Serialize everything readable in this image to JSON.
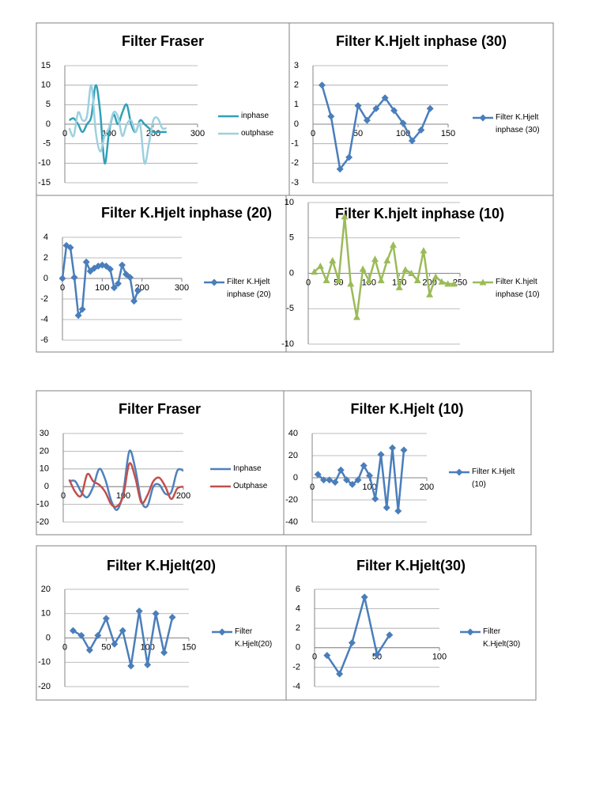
{
  "chart_data": [
    {
      "type": "line",
      "title": "Filter Fraser",
      "smooth": true,
      "marker": "none",
      "grid": true,
      "x": [
        10,
        20,
        30,
        40,
        50,
        60,
        70,
        80,
        90,
        100,
        110,
        120,
        130,
        140,
        150,
        160,
        170,
        180,
        190,
        200,
        210,
        220,
        230
      ],
      "series": [
        {
          "name": "inphase",
          "color": "#31a0b8",
          "values": [
            1,
            1.5,
            0,
            -2,
            0,
            2,
            10,
            3,
            -10,
            -2,
            2.5,
            0,
            3,
            5,
            0,
            -2,
            1,
            0,
            -1,
            -2,
            -2,
            -2,
            -2
          ]
        },
        {
          "name": "outphase",
          "color": "#9dd0df",
          "values": [
            -1,
            -3,
            3,
            1,
            2,
            10,
            -2,
            -7,
            -3,
            -1,
            3,
            2,
            -3,
            0,
            1,
            -2,
            0,
            -10,
            -5,
            1,
            1.5,
            -1,
            -1
          ]
        }
      ],
      "xlim": [
        0,
        300
      ],
      "xticks": [
        0,
        100,
        200,
        300
      ],
      "ylim": [
        -15,
        15
      ],
      "yticks": [
        -15,
        -10,
        -5,
        0,
        5,
        10,
        15
      ]
    },
    {
      "type": "line",
      "title": "Filter K.Hjelt inphase (30)",
      "smooth": false,
      "marker": "diamond",
      "grid": true,
      "x": [
        10,
        20,
        30,
        40,
        50,
        60,
        70,
        80,
        90,
        100,
        110,
        120,
        130
      ],
      "series": [
        {
          "name": "Filter K.Hjelt inphase (30)",
          "color": "#4a7ebb",
          "values": [
            2,
            0.4,
            -2.3,
            -1.7,
            0.95,
            0.2,
            0.8,
            1.35,
            0.7,
            0.05,
            -0.85,
            -0.3,
            0.8
          ]
        }
      ],
      "xlim": [
        0,
        150
      ],
      "xticks": [
        0,
        50,
        100,
        150
      ],
      "ylim": [
        -3,
        3
      ],
      "yticks": [
        -3,
        -2,
        -1,
        0,
        1,
        2,
        3
      ]
    },
    {
      "type": "line",
      "title": "Filter K.Hjelt  inphase (20)",
      "smooth": false,
      "marker": "diamond",
      "grid": true,
      "x": [
        0,
        10,
        20,
        30,
        40,
        50,
        60,
        70,
        80,
        90,
        100,
        110,
        120,
        130,
        140,
        150,
        160,
        170,
        180,
        190
      ],
      "series": [
        {
          "name": "Filter K.Hjelt inphase (20)",
          "color": "#4a7ebb",
          "values": [
            0,
            3.2,
            3,
            0.1,
            -3.6,
            -3,
            1.6,
            0.7,
            1,
            1.2,
            1.3,
            1.2,
            0.9,
            -0.9,
            -0.5,
            1.3,
            0.4,
            0.1,
            -2.2,
            -1.2
          ]
        }
      ],
      "xlim": [
        0,
        300
      ],
      "xticks": [
        0,
        100,
        200,
        300
      ],
      "ylim": [
        -6,
        4
      ],
      "yticks": [
        -6,
        -4,
        -2,
        0,
        2,
        4
      ]
    },
    {
      "type": "line",
      "title": "Filter K.hjelt  inphase  (10)",
      "smooth": false,
      "marker": "triangle",
      "grid": true,
      "x": [
        10,
        20,
        30,
        40,
        50,
        60,
        70,
        80,
        90,
        100,
        110,
        120,
        130,
        140,
        150,
        160,
        170,
        180,
        190,
        200,
        210,
        220,
        230,
        240
      ],
      "series": [
        {
          "name": "Filter K.hjelt inphase  (10)",
          "color": "#9bbb59",
          "values": [
            0.2,
            1,
            -1,
            1.8,
            -1,
            8,
            -1.5,
            -6.2,
            0.6,
            -1,
            2,
            -1,
            1.8,
            4,
            -2,
            0.5,
            0,
            -1,
            3.2,
            -3,
            -0.5,
            -1.2,
            -1.5,
            -1.5
          ]
        }
      ],
      "xlim": [
        0,
        250
      ],
      "xticks": [
        0,
        50,
        100,
        150,
        200,
        250
      ],
      "ylim": [
        -10,
        10
      ],
      "yticks": [
        -10,
        -5,
        0,
        5,
        10
      ]
    },
    {
      "type": "line",
      "title": "Filter Fraser",
      "smooth": true,
      "marker": "none",
      "grid": true,
      "x": [
        10,
        20,
        30,
        40,
        50,
        60,
        70,
        80,
        90,
        100,
        110,
        120,
        130,
        140,
        150,
        160,
        170,
        180,
        190,
        200
      ],
      "series": [
        {
          "name": "Inphase",
          "color": "#4f81bd",
          "values": [
            3,
            3,
            -3,
            -6,
            0,
            10,
            4,
            -8,
            -13,
            -3,
            20,
            10,
            -8,
            -11,
            0,
            1,
            -4,
            -3,
            9,
            9
          ]
        },
        {
          "name": "Outphase",
          "color": "#c0504d",
          "values": [
            4,
            -3,
            -5,
            7,
            3,
            1,
            -3,
            -10,
            -11,
            -5,
            13,
            5,
            -9,
            -5,
            3,
            5,
            0,
            -7,
            -1,
            0
          ]
        }
      ],
      "xlim": [
        0,
        200
      ],
      "xticks": [
        0,
        100,
        200
      ],
      "ylim": [
        -20,
        30
      ],
      "yticks": [
        -20,
        -10,
        0,
        10,
        20,
        30
      ]
    },
    {
      "type": "line",
      "title": "Filter K.Hjelt (10)",
      "smooth": false,
      "marker": "diamond",
      "grid": true,
      "x": [
        10,
        20,
        30,
        40,
        50,
        60,
        70,
        80,
        90,
        100,
        110,
        120,
        130,
        140,
        150,
        160
      ],
      "series": [
        {
          "name": "Filter K.Hjelt (10)",
          "color": "#4a7ebb",
          "values": [
            3,
            -2,
            -2,
            -4,
            7,
            -2,
            -6,
            -2,
            11,
            2,
            -19,
            21,
            -27,
            27,
            -30,
            25
          ]
        }
      ],
      "xlim": [
        0,
        200
      ],
      "xticks": [
        0,
        100,
        200
      ],
      "ylim": [
        -40,
        40
      ],
      "yticks": [
        -40,
        -20,
        0,
        20,
        40
      ]
    },
    {
      "type": "line",
      "title": "Filter K.Hjelt(20)",
      "smooth": false,
      "marker": "diamond",
      "grid": true,
      "x": [
        10,
        20,
        30,
        40,
        50,
        60,
        70,
        80,
        90,
        100,
        110,
        120,
        130
      ],
      "series": [
        {
          "name": "Filter K.Hjelt(20)",
          "color": "#4a7ebb",
          "values": [
            3,
            1,
            -5,
            1,
            8,
            -2.5,
            3,
            -11.5,
            11,
            -11,
            10,
            -6,
            8.5
          ]
        }
      ],
      "xlim": [
        0,
        150
      ],
      "xticks": [
        0,
        50,
        100,
        150
      ],
      "ylim": [
        -20,
        20
      ],
      "yticks": [
        -20,
        -10,
        0,
        10,
        20
      ]
    },
    {
      "type": "line",
      "title": "Filter K.Hjelt(30)",
      "smooth": false,
      "marker": "diamond",
      "grid": true,
      "x": [
        10,
        20,
        30,
        40,
        50,
        60
      ],
      "series": [
        {
          "name": "Filter K.Hjelt(30)",
          "color": "#4a7ebb",
          "values": [
            -0.8,
            -2.7,
            0.5,
            5.2,
            -0.7,
            1.3
          ]
        }
      ],
      "xlim": [
        0,
        100
      ],
      "xticks": [
        0,
        50,
        100
      ],
      "ylim": [
        -4,
        6
      ],
      "yticks": [
        -4,
        -2,
        0,
        2,
        4,
        6
      ]
    }
  ]
}
